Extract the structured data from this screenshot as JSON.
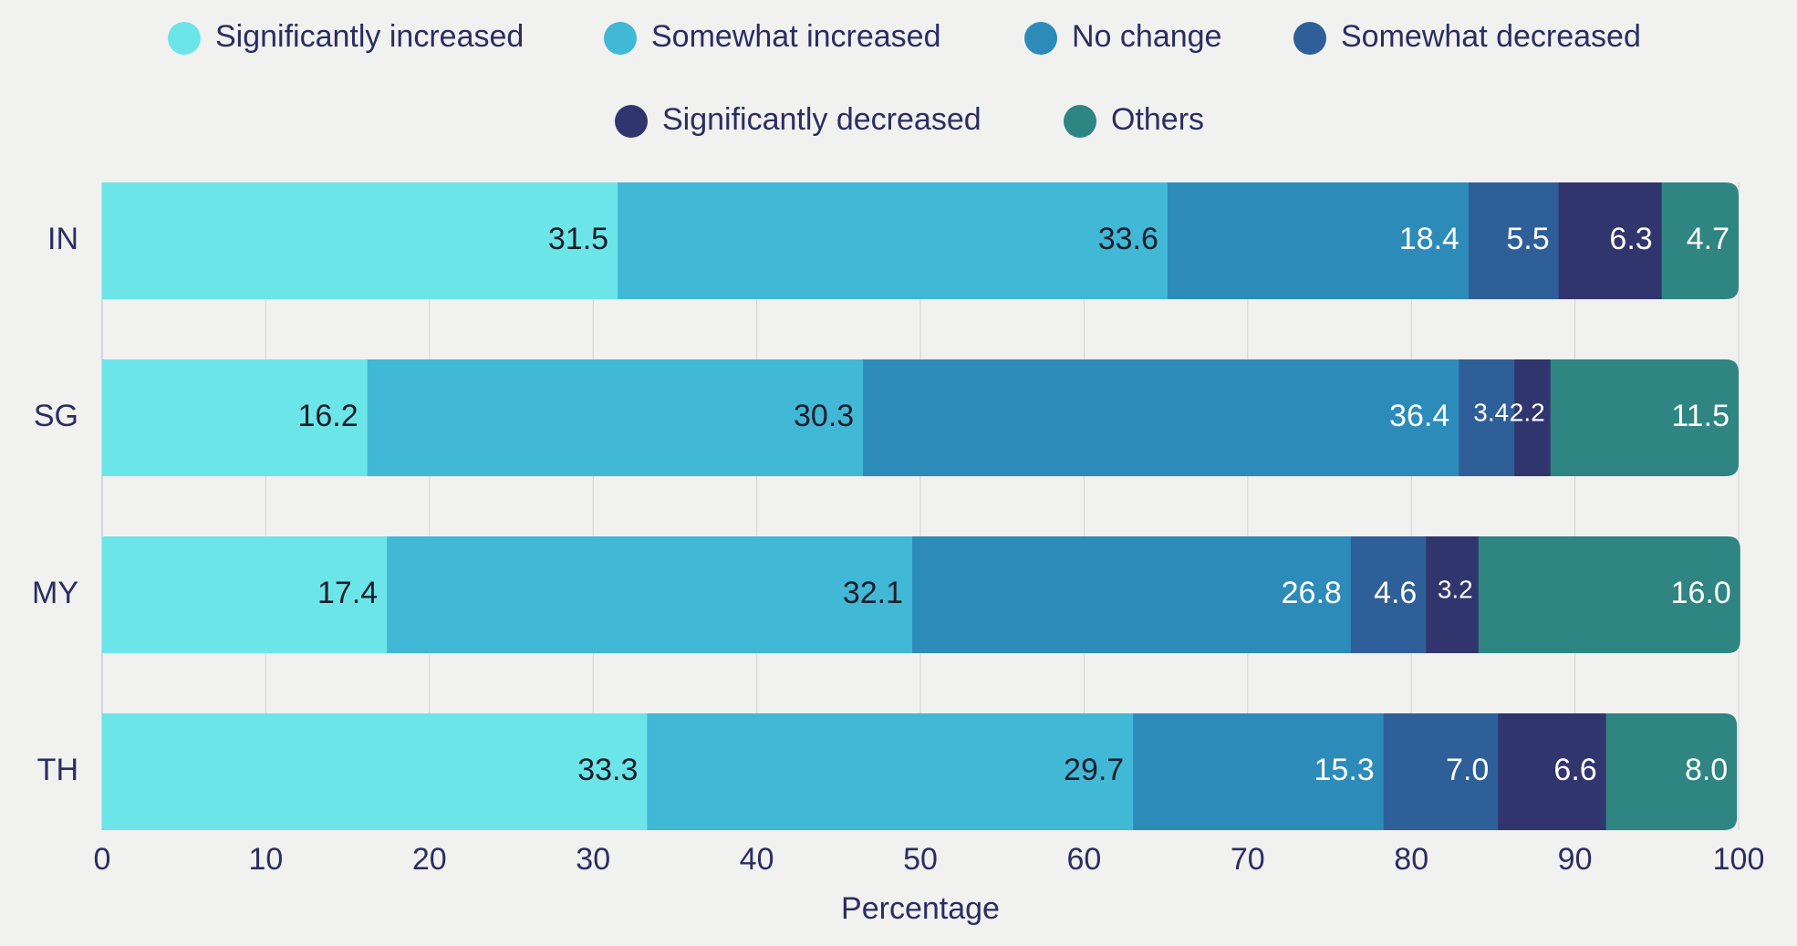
{
  "chart_data": {
    "type": "bar",
    "orientation": "horizontal",
    "stacked": true,
    "title": "",
    "xlabel": "Percentage",
    "ylabel": "",
    "xlim": [
      0,
      100
    ],
    "xticks": [
      0,
      10,
      20,
      30,
      40,
      50,
      60,
      70,
      80,
      90,
      100
    ],
    "grid": true,
    "legend_position": "top",
    "categories": [
      "IN",
      "SG",
      "MY",
      "TH"
    ],
    "series": [
      {
        "name": "Significantly increased",
        "color": "#6ce5e8",
        "label_color": "#1d1d2b",
        "values": [
          31.5,
          16.2,
          17.4,
          33.3
        ]
      },
      {
        "name": "Somewhat increased",
        "color": "#41b8d5",
        "label_color": "#1d1d2b",
        "values": [
          33.6,
          30.3,
          32.1,
          29.7
        ]
      },
      {
        "name": "No change",
        "color": "#2d8bba",
        "label_color": "#ffffff",
        "values": [
          18.4,
          36.4,
          26.8,
          15.3
        ]
      },
      {
        "name": "Somewhat decreased",
        "color": "#2f5f98",
        "label_color": "#ffffff",
        "values": [
          5.5,
          3.4,
          4.6,
          7.0
        ]
      },
      {
        "name": "Significantly decreased",
        "color": "#31356e",
        "label_color": "#ffffff",
        "values": [
          6.3,
          2.2,
          3.2,
          6.6
        ]
      },
      {
        "name": "Others",
        "color": "#2e8582",
        "label_color": "#ffffff",
        "values": [
          4.7,
          11.5,
          16.0,
          8.0
        ]
      }
    ],
    "value_labels": [
      [
        "31.5",
        "16.2",
        "17.4",
        "33.3"
      ],
      [
        "33.6",
        "30.3",
        "32.1",
        "29.7"
      ],
      [
        "18.4",
        "36.4",
        "26.8",
        "15.3"
      ],
      [
        "5.5",
        "3.4",
        "4.6",
        "7.0"
      ],
      [
        "6.3",
        "2.2",
        "3.2",
        "6.6"
      ],
      [
        "4.7",
        "11.5",
        "16.0",
        "8.0"
      ]
    ]
  }
}
